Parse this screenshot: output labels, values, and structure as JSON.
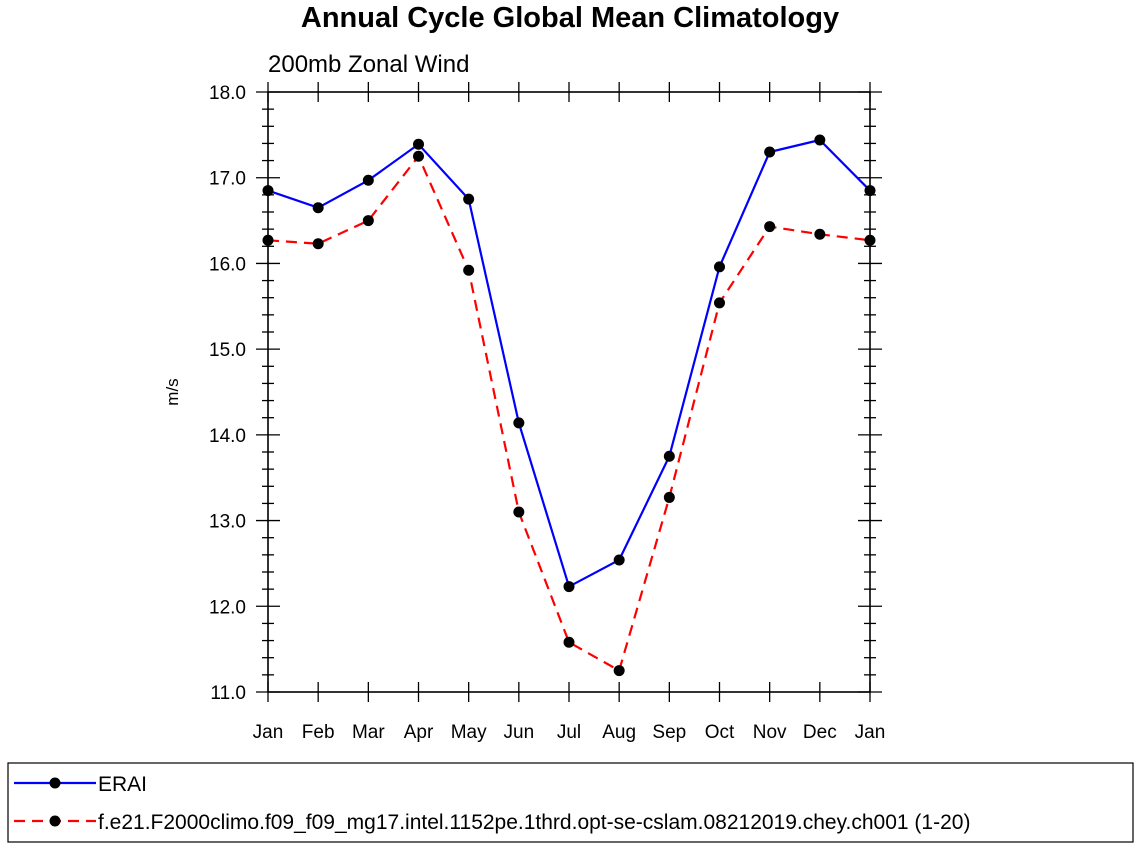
{
  "chart_data": {
    "type": "line",
    "title": "Annual Cycle Global Mean Climatology",
    "subtitle": "200mb Zonal Wind",
    "xlabel": "",
    "ylabel": "m/s",
    "categories": [
      "Jan",
      "Feb",
      "Mar",
      "Apr",
      "May",
      "Jun",
      "Jul",
      "Aug",
      "Sep",
      "Oct",
      "Nov",
      "Dec",
      "Jan"
    ],
    "ylim": [
      11.0,
      18.0
    ],
    "yticks": [
      "11.0",
      "12.0",
      "13.0",
      "14.0",
      "15.0",
      "16.0",
      "17.0",
      "18.0"
    ],
    "grid": false,
    "legend_position": "bottom",
    "series": [
      {
        "name": "ERAI",
        "color": "#0000ff",
        "dash": "solid",
        "marker": "dot",
        "values": [
          16.85,
          16.65,
          16.97,
          17.39,
          16.75,
          14.14,
          12.23,
          12.54,
          13.75,
          15.96,
          17.3,
          17.44,
          16.85
        ]
      },
      {
        "name": "f.e21.F2000climo.f09_f09_mg17.intel.1152pe.1thrd.opt-se-cslam.08212019.chey.ch001 (1-20)",
        "color": "#ff0000",
        "dash": "dashed",
        "marker": "dot",
        "values": [
          16.27,
          16.23,
          16.5,
          17.25,
          15.92,
          13.1,
          11.58,
          11.25,
          13.27,
          15.54,
          16.43,
          16.34,
          16.27
        ]
      }
    ]
  }
}
